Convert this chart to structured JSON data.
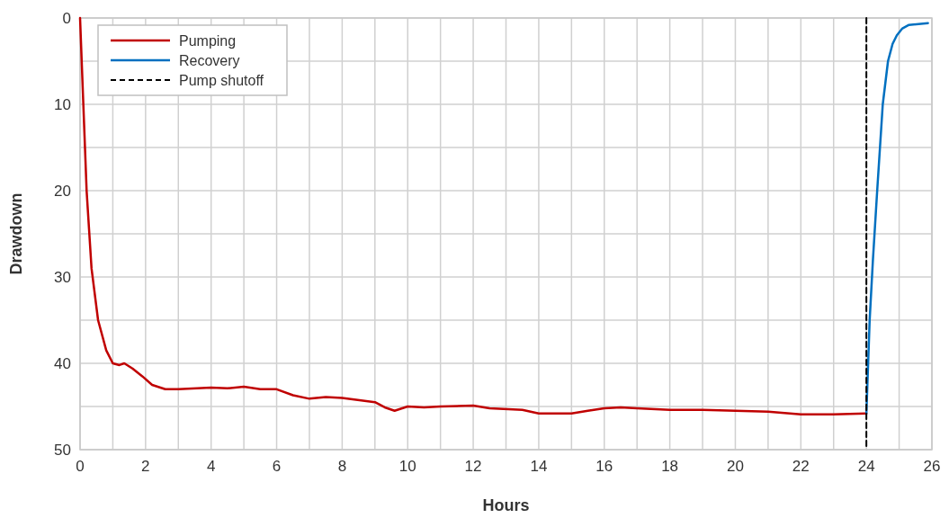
{
  "chart_data": {
    "type": "line",
    "xlabel": "Hours",
    "ylabel": "Drawdown",
    "xlim": [
      0,
      26
    ],
    "ylim": [
      50,
      0
    ],
    "xticks": [
      0,
      {
        "value": 1,
        "label": null
      },
      2,
      {
        "value": 3,
        "label": null
      },
      4,
      {
        "value": 5,
        "label": null
      },
      6,
      {
        "value": 7,
        "label": null
      },
      8,
      {
        "value": 9,
        "label": null
      },
      10,
      {
        "value": 11,
        "label": null
      },
      12,
      {
        "value": 13,
        "label": null
      },
      14,
      {
        "value": 15,
        "label": null
      },
      16,
      {
        "value": 17,
        "label": null
      },
      18,
      {
        "value": 19,
        "label": null
      },
      20,
      {
        "value": 21,
        "label": null
      },
      22,
      {
        "value": 23,
        "label": null
      },
      24,
      {
        "value": 25,
        "label": null
      },
      26
    ],
    "yticks": [
      0,
      {
        "value": 5,
        "label": null
      },
      10,
      {
        "value": 15,
        "label": null
      },
      20,
      {
        "value": 25,
        "label": null
      },
      30,
      {
        "value": 35,
        "label": null
      },
      40,
      {
        "value": 45,
        "label": null
      },
      50
    ],
    "grid": true,
    "legend": "top left",
    "series": [
      {
        "name": "Pumping",
        "color": "#c00000",
        "x": [
          0,
          0.1,
          0.2,
          0.35,
          0.55,
          0.8,
          1.0,
          1.2,
          1.35,
          1.6,
          1.9,
          2.2,
          2.6,
          3,
          4,
          4.5,
          5,
          5.5,
          6,
          6.5,
          7,
          7.5,
          8,
          9,
          9.3,
          9.6,
          10,
          10.5,
          11,
          12,
          12.5,
          13.5,
          14,
          15,
          15.5,
          16,
          16.5,
          17,
          18,
          19,
          20,
          21,
          22,
          23,
          24
        ],
        "values": [
          0,
          10,
          20,
          29,
          35,
          38.5,
          40,
          40.2,
          40,
          40.6,
          41.5,
          42.5,
          43,
          43,
          42.8,
          42.9,
          42.7,
          43,
          43,
          43.7,
          44.1,
          43.9,
          44,
          44.5,
          45.1,
          45.5,
          45,
          45.1,
          45,
          44.9,
          45.2,
          45.4,
          45.8,
          45.8,
          45.5,
          45.2,
          45.1,
          45.2,
          45.4,
          45.4,
          45.5,
          45.6,
          45.9,
          45.9,
          45.8
        ]
      },
      {
        "name": "Recovery",
        "color": "#0070c0",
        "x": [
          24,
          24.1,
          24.2,
          24.33,
          24.5,
          24.66,
          24.8,
          24.93,
          25.1,
          25.3,
          25.88
        ],
        "values": [
          45.8,
          35,
          28,
          20,
          10,
          5,
          3,
          2,
          1.2,
          0.8,
          0.6
        ]
      },
      {
        "name": "Pump shutoff",
        "color": "#000000",
        "line_style": "dashed",
        "x": [
          24,
          24
        ],
        "values": [
          0,
          50
        ]
      }
    ]
  }
}
